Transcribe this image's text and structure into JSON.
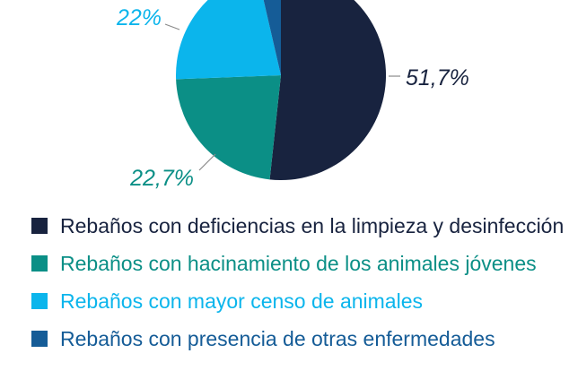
{
  "chart_data": {
    "type": "pie",
    "title": "",
    "slices": [
      {
        "label": "Rebaños con deficiencias en la limpieza y desinfección",
        "value": 51.7,
        "display": "51,7%",
        "color": "#18233f"
      },
      {
        "label": "Rebaños con hacinamiento de los animales jóvenes",
        "value": 22.7,
        "display": "22,7%",
        "color": "#0b8f86"
      },
      {
        "label": "Rebaños con mayor censo de animales",
        "value": 22,
        "display": "22%",
        "color": "#0bb5ec"
      },
      {
        "label": "Rebaños con presencia de otras enfermedades",
        "value": 3.6,
        "display": "",
        "color": "#155c97"
      }
    ],
    "legend_position": "bottom"
  }
}
